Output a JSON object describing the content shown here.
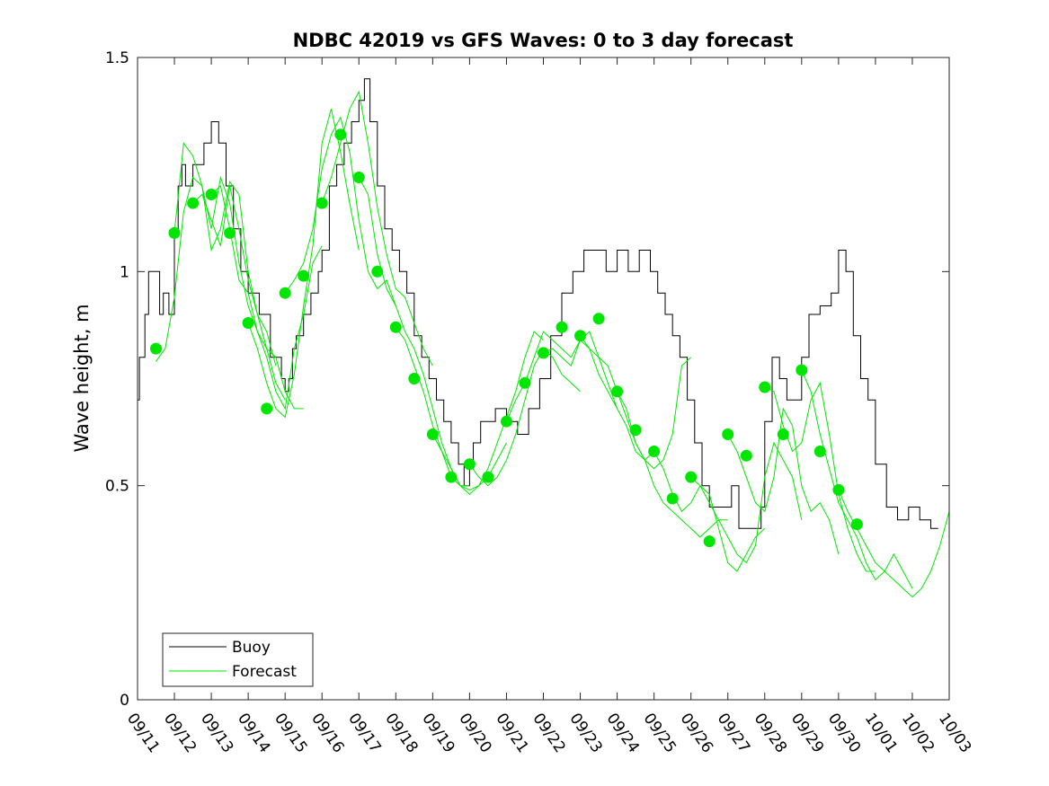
{
  "chart_data": {
    "type": "line",
    "title": "NDBC 42019 vs GFS Waves: 0 to 3 day forecast",
    "xlabel": "",
    "ylabel": "Wave height, m",
    "ylim": [
      0,
      1.5
    ],
    "yticks": [
      0,
      0.5,
      1,
      1.5
    ],
    "ytick_labels": [
      "0",
      "0.5",
      "1",
      "1.5"
    ],
    "xlim_days": [
      0,
      22
    ],
    "xtick_labels": [
      "09/11",
      "09/12",
      "09/13",
      "09/14",
      "09/15",
      "09/16",
      "09/17",
      "09/18",
      "09/19",
      "09/20",
      "09/21",
      "09/22",
      "09/23",
      "09/24",
      "09/25",
      "09/26",
      "09/27",
      "09/28",
      "09/29",
      "09/30",
      "10/01",
      "10/02",
      "10/03"
    ],
    "legend": {
      "position": "bottom-left",
      "entries": [
        "Buoy",
        "Forecast"
      ]
    },
    "colors": {
      "buoy": "#000000",
      "forecast": "#00e600",
      "marker": "#00e600"
    },
    "buoy_series": {
      "name": "Buoy",
      "points": [
        [
          0,
          0.7
        ],
        [
          0.05,
          0.8
        ],
        [
          0.2,
          0.9
        ],
        [
          0.3,
          1.0
        ],
        [
          0.5,
          1.0
        ],
        [
          0.6,
          0.9
        ],
        [
          0.7,
          0.95
        ],
        [
          0.85,
          0.9
        ],
        [
          1.0,
          1.1
        ],
        [
          1.1,
          1.2
        ],
        [
          1.2,
          1.25
        ],
        [
          1.3,
          1.2
        ],
        [
          1.5,
          1.25
        ],
        [
          1.8,
          1.3
        ],
        [
          2.0,
          1.35
        ],
        [
          2.2,
          1.3
        ],
        [
          2.4,
          1.2
        ],
        [
          2.6,
          1.1
        ],
        [
          2.8,
          1.0
        ],
        [
          3.0,
          0.95
        ],
        [
          3.3,
          0.9
        ],
        [
          3.6,
          0.8
        ],
        [
          3.9,
          0.75
        ],
        [
          4.0,
          0.72
        ],
        [
          4.1,
          0.75
        ],
        [
          4.2,
          0.82
        ],
        [
          4.3,
          0.85
        ],
        [
          4.5,
          0.9
        ],
        [
          4.7,
          0.95
        ],
        [
          4.9,
          1.0
        ],
        [
          5.0,
          1.05
        ],
        [
          5.2,
          1.2
        ],
        [
          5.4,
          1.25
        ],
        [
          5.6,
          1.3
        ],
        [
          5.8,
          1.35
        ],
        [
          6.0,
          1.4
        ],
        [
          6.15,
          1.45
        ],
        [
          6.3,
          1.35
        ],
        [
          6.5,
          1.2
        ],
        [
          6.7,
          1.1
        ],
        [
          6.9,
          1.05
        ],
        [
          7.1,
          1.0
        ],
        [
          7.3,
          0.95
        ],
        [
          7.5,
          0.85
        ],
        [
          7.7,
          0.8
        ],
        [
          7.9,
          0.75
        ],
        [
          8.1,
          0.7
        ],
        [
          8.3,
          0.65
        ],
        [
          8.5,
          0.6
        ],
        [
          8.7,
          0.55
        ],
        [
          8.85,
          0.5
        ],
        [
          9.0,
          0.55
        ],
        [
          9.1,
          0.6
        ],
        [
          9.3,
          0.65
        ],
        [
          9.5,
          0.65
        ],
        [
          9.7,
          0.68
        ],
        [
          10.0,
          0.65
        ],
        [
          10.3,
          0.62
        ],
        [
          10.6,
          0.68
        ],
        [
          10.9,
          0.75
        ],
        [
          11.2,
          0.85
        ],
        [
          11.5,
          0.95
        ],
        [
          11.8,
          1.0
        ],
        [
          12.1,
          1.05
        ],
        [
          12.4,
          1.05
        ],
        [
          12.7,
          1.0
        ],
        [
          13.0,
          1.05
        ],
        [
          13.3,
          1.0
        ],
        [
          13.6,
          1.05
        ],
        [
          13.9,
          1.0
        ],
        [
          14.1,
          0.95
        ],
        [
          14.3,
          0.9
        ],
        [
          14.5,
          0.85
        ],
        [
          14.7,
          0.8
        ],
        [
          14.9,
          0.7
        ],
        [
          15.1,
          0.6
        ],
        [
          15.3,
          0.5
        ],
        [
          15.5,
          0.45
        ],
        [
          15.7,
          0.45
        ],
        [
          15.9,
          0.45
        ],
        [
          16.1,
          0.5
        ],
        [
          16.3,
          0.4
        ],
        [
          16.6,
          0.4
        ],
        [
          16.9,
          0.45
        ],
        [
          17.0,
          0.65
        ],
        [
          17.2,
          0.8
        ],
        [
          17.4,
          0.75
        ],
        [
          17.6,
          0.7
        ],
        [
          17.8,
          0.7
        ],
        [
          18.0,
          0.8
        ],
        [
          18.2,
          0.9
        ],
        [
          18.5,
          0.92
        ],
        [
          18.8,
          0.95
        ],
        [
          19.0,
          1.05
        ],
        [
          19.2,
          1.0
        ],
        [
          19.4,
          0.85
        ],
        [
          19.6,
          0.75
        ],
        [
          19.8,
          0.7
        ],
        [
          20.0,
          0.55
        ],
        [
          20.3,
          0.45
        ],
        [
          20.6,
          0.42
        ],
        [
          20.9,
          0.45
        ],
        [
          21.2,
          0.42
        ],
        [
          21.5,
          0.4
        ],
        [
          21.7,
          0.4
        ]
      ]
    },
    "forecast_markers": [
      [
        0.5,
        0.82
      ],
      [
        1.0,
        1.09
      ],
      [
        1.5,
        1.16
      ],
      [
        2.0,
        1.18
      ],
      [
        2.5,
        1.09
      ],
      [
        3.0,
        0.88
      ],
      [
        3.5,
        0.68
      ],
      [
        4.0,
        0.95
      ],
      [
        4.5,
        0.99
      ],
      [
        5.0,
        1.16
      ],
      [
        5.5,
        1.32
      ],
      [
        6.0,
        1.22
      ],
      [
        6.5,
        1.0
      ],
      [
        7.0,
        0.87
      ],
      [
        7.5,
        0.75
      ],
      [
        8.0,
        0.62
      ],
      [
        8.5,
        0.52
      ],
      [
        9.0,
        0.55
      ],
      [
        9.5,
        0.52
      ],
      [
        10.0,
        0.65
      ],
      [
        10.5,
        0.74
      ],
      [
        11.0,
        0.81
      ],
      [
        11.5,
        0.87
      ],
      [
        12.0,
        0.85
      ],
      [
        12.5,
        0.89
      ],
      [
        13.0,
        0.72
      ],
      [
        13.5,
        0.63
      ],
      [
        14.0,
        0.58
      ],
      [
        14.5,
        0.47
      ],
      [
        15.0,
        0.52
      ],
      [
        15.5,
        0.37
      ],
      [
        16.0,
        0.62
      ],
      [
        16.5,
        0.57
      ],
      [
        17.0,
        0.73
      ],
      [
        17.5,
        0.62
      ],
      [
        18.0,
        0.77
      ],
      [
        18.5,
        0.58
      ],
      [
        19.0,
        0.49
      ],
      [
        19.5,
        0.41
      ]
    ],
    "forecast_series": [
      {
        "name": "Forecast",
        "start_day": 0.5,
        "values": [
          0.79,
          0.82,
          0.94,
          1.14,
          1.22,
          1.2,
          1.05,
          1.1,
          1.21,
          1.18,
          1.0,
          0.9,
          0.86,
          0.78
        ]
      },
      {
        "name": "Forecast",
        "start_day": 1.0,
        "values": [
          1.09,
          1.3,
          1.27,
          1.2,
          1.1,
          1.22,
          1.16,
          1.02,
          0.92,
          0.86,
          0.82,
          0.74,
          0.7
        ]
      },
      {
        "name": "Forecast",
        "start_day": 1.5,
        "values": [
          1.16,
          1.18,
          1.12,
          1.06,
          1.2,
          1.1,
          0.98,
          0.9,
          0.82,
          0.8,
          0.72,
          0.68,
          0.68
        ]
      },
      {
        "name": "Forecast",
        "start_day": 2.0,
        "values": [
          1.18,
          1.2,
          1.1,
          0.98,
          0.95,
          0.86,
          0.8,
          0.72,
          0.68,
          0.82,
          0.9,
          1.02,
          1.06
        ]
      },
      {
        "name": "Forecast",
        "start_day": 3.0,
        "values": [
          0.88,
          0.82,
          0.74,
          0.68,
          0.66,
          0.76,
          0.92,
          1.06,
          1.3,
          1.38,
          1.28,
          1.16,
          1.05
        ]
      },
      {
        "name": "Forecast",
        "start_day": 4.0,
        "values": [
          0.95,
          0.98,
          1.02,
          1.1,
          1.24,
          1.32,
          1.36,
          1.28,
          1.12,
          1.0,
          0.96,
          0.98,
          0.92
        ]
      },
      {
        "name": "Forecast",
        "start_day": 5.0,
        "values": [
          1.16,
          1.22,
          1.3,
          1.38,
          1.42,
          1.3,
          1.15,
          1.04,
          0.96,
          0.94,
          0.88,
          0.82,
          0.78
        ]
      },
      {
        "name": "Forecast",
        "start_day": 6.0,
        "values": [
          1.22,
          1.18,
          1.04,
          0.96,
          0.92,
          0.86,
          0.82,
          0.76,
          0.68,
          0.6,
          0.54,
          0.5,
          0.5
        ]
      },
      {
        "name": "Forecast",
        "start_day": 7.0,
        "values": [
          0.87,
          0.84,
          0.78,
          0.72,
          0.64,
          0.58,
          0.54,
          0.5,
          0.49,
          0.5,
          0.52,
          0.56,
          0.6
        ]
      },
      {
        "name": "Forecast",
        "start_day": 8.0,
        "values": [
          0.62,
          0.58,
          0.52,
          0.5,
          0.48,
          0.5,
          0.54,
          0.6,
          0.66,
          0.72,
          0.8,
          0.86,
          0.84
        ]
      },
      {
        "name": "Forecast",
        "start_day": 9.0,
        "values": [
          0.55,
          0.52,
          0.5,
          0.52,
          0.56,
          0.62,
          0.7,
          0.78,
          0.82,
          0.8,
          0.76,
          0.74,
          0.72
        ]
      },
      {
        "name": "Forecast",
        "start_day": 10.0,
        "values": [
          0.65,
          0.7,
          0.74,
          0.8,
          0.86,
          0.84,
          0.82,
          0.8,
          0.84,
          0.82,
          0.76,
          0.72,
          0.68
        ]
      },
      {
        "name": "Forecast",
        "start_day": 11.0,
        "values": [
          0.81,
          0.82,
          0.8,
          0.78,
          0.84,
          0.86,
          0.8,
          0.74,
          0.68,
          0.64,
          0.58,
          0.56,
          0.58
        ]
      },
      {
        "name": "Forecast",
        "start_day": 12.0,
        "values": [
          0.85,
          0.82,
          0.8,
          0.78,
          0.72,
          0.66,
          0.6,
          0.56,
          0.54,
          0.56,
          0.62,
          0.78,
          0.8
        ]
      },
      {
        "name": "Forecast",
        "start_day": 13.0,
        "values": [
          0.72,
          0.68,
          0.6,
          0.56,
          0.5,
          0.46,
          0.44,
          0.42,
          0.4,
          0.38,
          0.4,
          0.42,
          0.42
        ]
      },
      {
        "name": "Forecast",
        "start_day": 14.0,
        "values": [
          0.58,
          0.54,
          0.48,
          0.44,
          0.46,
          0.5,
          0.48,
          0.4,
          0.32,
          0.3,
          0.34,
          0.38,
          0.4
        ]
      },
      {
        "name": "Forecast",
        "start_day": 15.0,
        "values": [
          0.52,
          0.5,
          0.46,
          0.42,
          0.38,
          0.34,
          0.32,
          0.36,
          0.52,
          0.6,
          0.56,
          0.52,
          0.42
        ]
      },
      {
        "name": "Forecast",
        "start_day": 16.0,
        "values": [
          0.62,
          0.58,
          0.52,
          0.46,
          0.44,
          0.52,
          0.68,
          0.64,
          0.5,
          0.44,
          0.46,
          0.42,
          0.34
        ]
      },
      {
        "name": "Forecast",
        "start_day": 17.0,
        "values": [
          0.73,
          0.72,
          0.64,
          0.58,
          0.6,
          0.7,
          0.74,
          0.62,
          0.48,
          0.4,
          0.34,
          0.3,
          0.3
        ]
      },
      {
        "name": "Forecast",
        "start_day": 18.0,
        "values": [
          0.77,
          0.72,
          0.62,
          0.54,
          0.46,
          0.42,
          0.38,
          0.32,
          0.28,
          0.3,
          0.34,
          0.3,
          0.26
        ]
      },
      {
        "name": "Forecast",
        "start_day": 19.0,
        "values": [
          0.49,
          0.44,
          0.4,
          0.36,
          0.32,
          0.3,
          0.28,
          0.26,
          0.24,
          0.26,
          0.3,
          0.36,
          0.44
        ]
      }
    ]
  }
}
